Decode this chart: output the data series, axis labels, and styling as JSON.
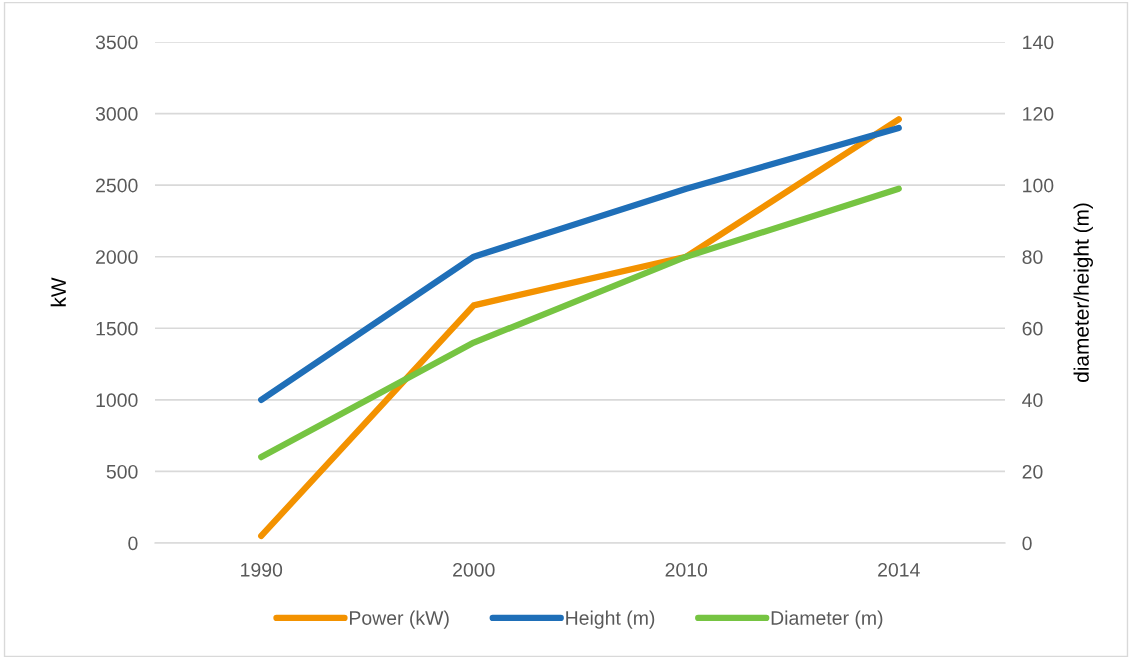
{
  "chart_data": {
    "type": "line",
    "ylabel": "kW",
    "y2label": "diameter/height (m)",
    "categories": [
      "1990",
      "2000",
      "2010",
      "2014"
    ],
    "series": [
      {
        "name": "Power (kW)",
        "color": "#f39200",
        "values": [
          50,
          1660,
          2000,
          2960
        ]
      },
      {
        "name": "Height (m)",
        "color": "#1f6fb8",
        "values": [
          40,
          80,
          99,
          116
        ],
        "axis": "y2"
      },
      {
        "name": "Diameter (m)",
        "color": "#76c442",
        "values": [
          24,
          56,
          80,
          99
        ],
        "axis": "y2"
      }
    ],
    "ylim": [
      0,
      3500
    ],
    "yticks": [
      0,
      500,
      1000,
      1500,
      2000,
      2500,
      3000,
      3500
    ],
    "y2lim": [
      0,
      140
    ],
    "y2ticks": [
      0,
      20,
      40,
      60,
      80,
      100,
      120,
      140
    ],
    "grid": "y",
    "legend": "bottom",
    "line_style": "solid",
    "marker": "none"
  }
}
